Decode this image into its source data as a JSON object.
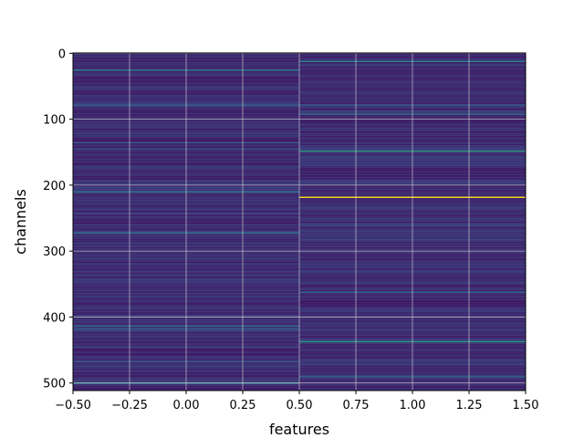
{
  "chart_data": {
    "type": "heatmap",
    "title": "",
    "xlabel": "features",
    "ylabel": "channels",
    "colormap": "viridis",
    "x": [
      0,
      1
    ],
    "n_rows": 512,
    "xlim": [
      -0.5,
      1.5
    ],
    "ylim": [
      511.5,
      -0.5
    ],
    "y_inverted": true,
    "grid": true,
    "grid_color": "#d9d9d9",
    "xticks": [
      -0.5,
      -0.25,
      0.0,
      0.25,
      0.5,
      0.75,
      1.0,
      1.25,
      1.5
    ],
    "xtick_labels": [
      "−0.50",
      "−0.25",
      "0.00",
      "0.25",
      "0.50",
      "0.75",
      "1.00",
      "1.25",
      "1.50"
    ],
    "yticks": [
      0,
      100,
      200,
      300,
      400,
      500
    ],
    "ytick_labels": [
      "0",
      "100",
      "200",
      "300",
      "400",
      "500"
    ],
    "columns": [
      {
        "feature": 0,
        "base_value": 0.14,
        "highlighted_rows": [
          {
            "row": 25,
            "value": 0.45
          },
          {
            "row": 78,
            "value": 0.3
          },
          {
            "row": 135,
            "value": 0.3
          },
          {
            "row": 210,
            "value": 0.42
          },
          {
            "row": 272,
            "value": 0.35
          },
          {
            "row": 413,
            "value": 0.35
          },
          {
            "row": 418,
            "value": 0.3
          },
          {
            "row": 467,
            "value": 0.3
          },
          {
            "row": 500,
            "value": 0.45
          }
        ]
      },
      {
        "feature": 1,
        "base_value": 0.14,
        "highlighted_rows": [
          {
            "row": 12,
            "value": 0.45
          },
          {
            "row": 78,
            "value": 0.3
          },
          {
            "row": 92,
            "value": 0.35
          },
          {
            "row": 148,
            "value": 0.55
          },
          {
            "row": 218,
            "value": 1.0
          },
          {
            "row": 362,
            "value": 0.35
          },
          {
            "row": 437,
            "value": 0.55
          },
          {
            "row": 490,
            "value": 0.3
          }
        ]
      }
    ]
  }
}
